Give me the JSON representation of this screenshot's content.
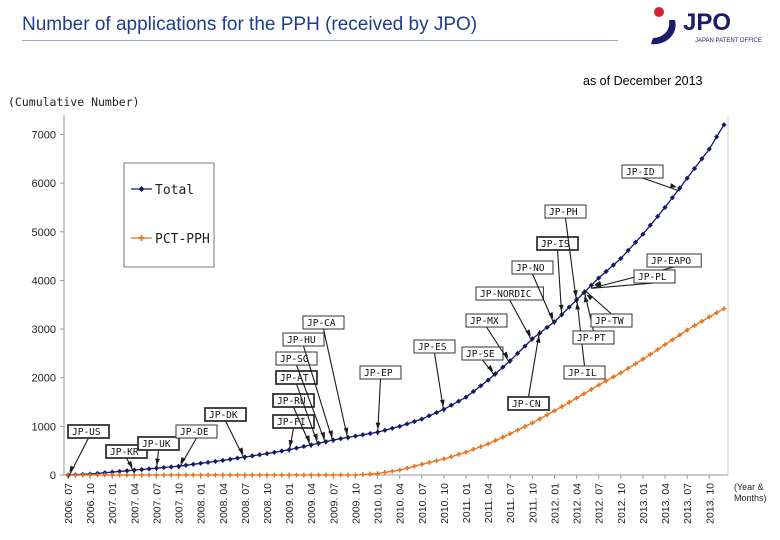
{
  "header": {
    "title": "Number of applications for the PPH (received by JPO)",
    "as_of": "as of December 2013",
    "logo_text": "JPO",
    "logo_subtext": "JAPAN PATENT OFFICE"
  },
  "colors": {
    "title": "#1f3d8f",
    "total": "#141a6e",
    "pct": "#e8731e",
    "logo_red": "#d4202c"
  },
  "chart_data": {
    "type": "line",
    "ylabel": "(Cumulative Number)",
    "xlabel": "(Year & Months)",
    "ylim": [
      0,
      7400
    ],
    "yticks": [
      0,
      1000,
      2000,
      3000,
      4000,
      5000,
      6000,
      7000
    ],
    "x_range": [
      "2006.07",
      "2013.12"
    ],
    "x_ticks": [
      "2006. 07",
      "2006. 10",
      "2007. 01",
      "2007. 04",
      "2007. 07",
      "2007. 10",
      "2008. 01",
      "2008. 04",
      "2008. 07",
      "2008. 10",
      "2009. 01",
      "2009. 04",
      "2009. 07",
      "2009. 10",
      "2010. 01",
      "2010. 04",
      "2010. 07",
      "2010. 10",
      "2011. 01",
      "2011. 04",
      "2011. 07",
      "2011. 10",
      "2012. 01",
      "2012. 04",
      "2012. 07",
      "2012. 10",
      "2013. 01",
      "2013. 04",
      "2013. 07",
      "2013. 10"
    ],
    "legend": {
      "position": "top-left",
      "entries": [
        "Total",
        "PCT-PPH"
      ]
    },
    "series": [
      {
        "name": "Total",
        "color": "#141a6e",
        "anchors": [
          [
            "2006.07",
            0
          ],
          [
            "2006.10",
            20
          ],
          [
            "2007.01",
            60
          ],
          [
            "2007.04",
            100
          ],
          [
            "2007.07",
            140
          ],
          [
            "2007.10",
            180
          ],
          [
            "2008.01",
            240
          ],
          [
            "2008.04",
            300
          ],
          [
            "2008.07",
            370
          ],
          [
            "2008.10",
            440
          ],
          [
            "2009.01",
            520
          ],
          [
            "2009.04",
            620
          ],
          [
            "2009.07",
            720
          ],
          [
            "2009.10",
            800
          ],
          [
            "2010.01",
            880
          ],
          [
            "2010.04",
            1000
          ],
          [
            "2010.07",
            1150
          ],
          [
            "2010.10",
            1350
          ],
          [
            "2011.01",
            1600
          ],
          [
            "2011.04",
            1950
          ],
          [
            "2011.07",
            2350
          ],
          [
            "2011.10",
            2800
          ],
          [
            "2012.01",
            3150
          ],
          [
            "2012.04",
            3600
          ],
          [
            "2012.07",
            4050
          ],
          [
            "2012.10",
            4450
          ],
          [
            "2013.01",
            4950
          ],
          [
            "2013.04",
            5500
          ],
          [
            "2013.07",
            6100
          ],
          [
            "2013.10",
            6700
          ],
          [
            "2013.12",
            7200
          ]
        ]
      },
      {
        "name": "PCT-PPH",
        "color": "#e8731e",
        "anchors": [
          [
            "2006.07",
            0
          ],
          [
            "2009.10",
            0
          ],
          [
            "2010.01",
            30
          ],
          [
            "2010.04",
            100
          ],
          [
            "2010.07",
            220
          ],
          [
            "2010.10",
            330
          ],
          [
            "2011.01",
            470
          ],
          [
            "2011.04",
            640
          ],
          [
            "2011.07",
            850
          ],
          [
            "2011.10",
            1070
          ],
          [
            "2012.01",
            1320
          ],
          [
            "2012.04",
            1580
          ],
          [
            "2012.07",
            1850
          ],
          [
            "2012.10",
            2100
          ],
          [
            "2013.01",
            2380
          ],
          [
            "2013.04",
            2680
          ],
          [
            "2013.07",
            2980
          ],
          [
            "2013.10",
            3250
          ],
          [
            "2013.12",
            3420
          ]
        ]
      }
    ],
    "annotations": [
      {
        "label": "JP-US",
        "date": "2006.07",
        "boxed": true
      },
      {
        "label": "JP-KR",
        "date": "2007.04",
        "boxed": true
      },
      {
        "label": "JP-UK",
        "date": "2007.07",
        "boxed": true
      },
      {
        "label": "JP-DE",
        "date": "2007.10",
        "boxed": false
      },
      {
        "label": "JP-DK",
        "date": "2008.07",
        "boxed": true
      },
      {
        "label": "JP-FI",
        "date": "2009.01",
        "boxed": true
      },
      {
        "label": "JP-RU",
        "date": "2009.04",
        "boxed": true
      },
      {
        "label": "JP-AT",
        "date": "2009.05",
        "boxed": true
      },
      {
        "label": "JP-SG",
        "date": "2009.06",
        "boxed": false
      },
      {
        "label": "JP-HU",
        "date": "2009.07",
        "boxed": false
      },
      {
        "label": "JP-CA",
        "date": "2009.09",
        "boxed": false
      },
      {
        "label": "JP-EP",
        "date": "2010.01",
        "boxed": false
      },
      {
        "label": "JP-ES",
        "date": "2010.10",
        "boxed": false
      },
      {
        "label": "JP-SE",
        "date": "2011.05",
        "boxed": false
      },
      {
        "label": "JP-MX",
        "date": "2011.07",
        "boxed": false
      },
      {
        "label": "JP-NORDIC",
        "date": "2011.10",
        "boxed": false
      },
      {
        "label": "JP-CN",
        "date": "2011.11",
        "boxed": true
      },
      {
        "label": "JP-NO",
        "date": "2012.01",
        "boxed": false
      },
      {
        "label": "JP-IS",
        "date": "2012.02",
        "boxed": true
      },
      {
        "label": "JP-PH",
        "date": "2012.04",
        "boxed": false
      },
      {
        "label": "JP-IL",
        "date": "2012.04",
        "boxed": false
      },
      {
        "label": "JP-PT",
        "date": "2012.05",
        "boxed": false
      },
      {
        "label": "JP-TW",
        "date": "2012.05",
        "boxed": false
      },
      {
        "label": "JP-EAPO",
        "date": "2012.06",
        "boxed": false
      },
      {
        "label": "JP-PL",
        "date": "2012.06",
        "boxed": false
      },
      {
        "label": "JP-ID",
        "date": "2013.06",
        "boxed": false
      }
    ]
  }
}
